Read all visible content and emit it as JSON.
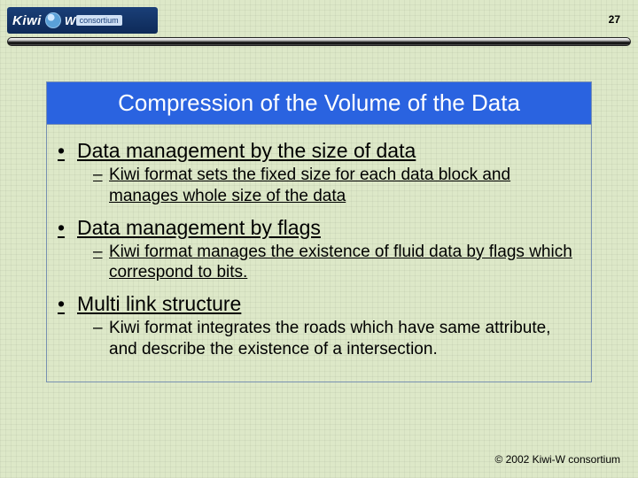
{
  "logo": {
    "brand": "Kiwi",
    "suffix": "W",
    "sub": "consortium"
  },
  "page_number": "27",
  "title": "Compression of the Volume of the Data",
  "bullets": [
    {
      "text": "Data management by the size of data",
      "sub": {
        "text": "Kiwi format sets the fixed size for each data block and manages whole size of the data",
        "underline": true
      }
    },
    {
      "text": "Data management by flags",
      "sub": {
        "text": "Kiwi format manages the existence of fluid data by flags which correspond to bits.",
        "underline": true
      }
    },
    {
      "text": "Multi link structure",
      "sub": {
        "text": "Kiwi format integrates the roads which have same attribute, and describe the existence of a intersection.",
        "underline": false
      }
    }
  ],
  "copyright": "© 2002 Kiwi-W consortium",
  "colors": {
    "background": "#dde8c8",
    "header_bg": "#2a63e0",
    "header_text": "#ffffff",
    "card_border": "#7890b0",
    "text": "#000000"
  }
}
